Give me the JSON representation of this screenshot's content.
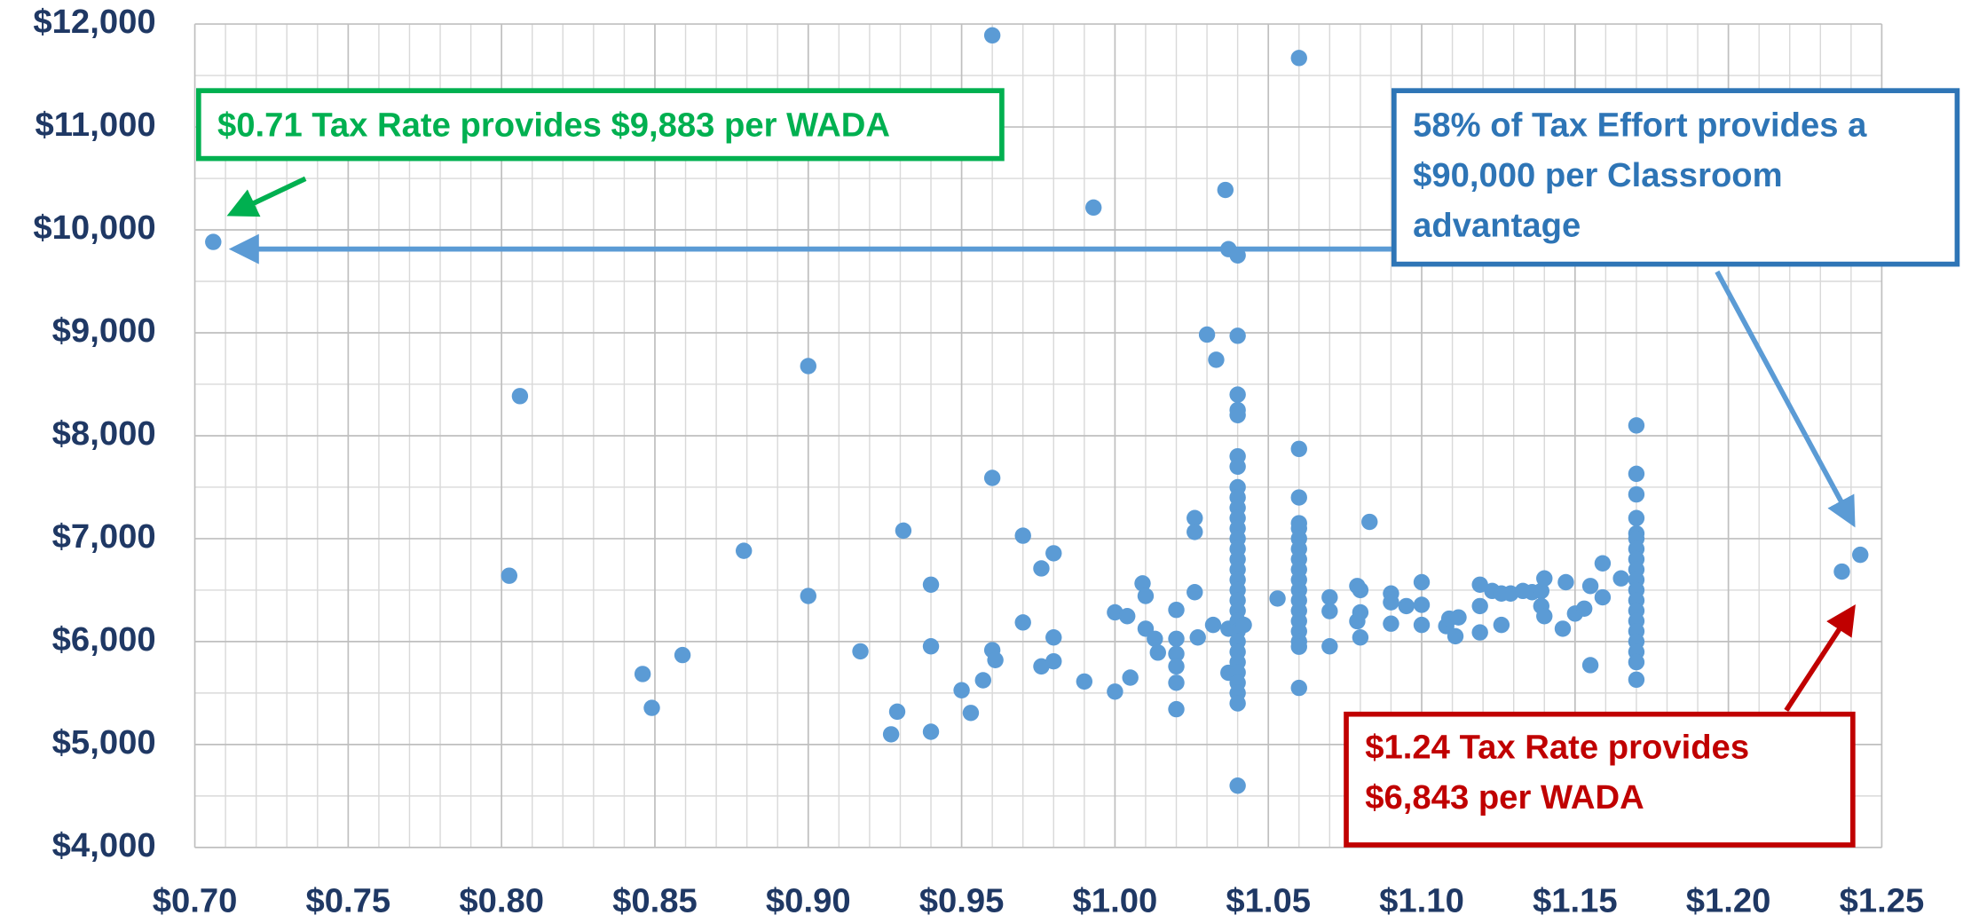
{
  "chart_data": {
    "type": "scatter",
    "x": [
      0.706,
      0.8025,
      0.806,
      0.846,
      0.849,
      0.859,
      0.879,
      0.9,
      0.9,
      0.917,
      0.927,
      0.929,
      0.931,
      0.94,
      0.94,
      0.94,
      0.95,
      0.953,
      0.957,
      0.96,
      0.96,
      0.96,
      0.961,
      0.97,
      0.97,
      0.976,
      0.976,
      0.98,
      0.98,
      0.98,
      0.99,
      0.993,
      1.0,
      1.0,
      1.004,
      1.005,
      1.009,
      1.01,
      1.01,
      1.013,
      1.014,
      1.02,
      1.02,
      1.02,
      1.02,
      1.02,
      1.02,
      1.026,
      1.026,
      1.026,
      1.027,
      1.03,
      1.032,
      1.033,
      1.036,
      1.037,
      1.037,
      1.037,
      1.04,
      1.04,
      1.04,
      1.04,
      1.04,
      1.04,
      1.04,
      1.04,
      1.04,
      1.04,
      1.04,
      1.04,
      1.04,
      1.04,
      1.04,
      1.04,
      1.04,
      1.04,
      1.04,
      1.04,
      1.04,
      1.04,
      1.04,
      1.04,
      1.04,
      1.04,
      1.04,
      1.04,
      1.04,
      1.04,
      1.042,
      1.053,
      1.06,
      1.06,
      1.06,
      1.06,
      1.06,
      1.06,
      1.06,
      1.06,
      1.06,
      1.06,
      1.06,
      1.06,
      1.06,
      1.06,
      1.06,
      1.06,
      1.06,
      1.06,
      1.07,
      1.07,
      1.07,
      1.079,
      1.079,
      1.08,
      1.08,
      1.08,
      1.083,
      1.09,
      1.09,
      1.09,
      1.095,
      1.1,
      1.1,
      1.1,
      1.108,
      1.109,
      1.111,
      1.112,
      1.119,
      1.119,
      1.119,
      1.123,
      1.126,
      1.126,
      1.129,
      1.133,
      1.136,
      1.139,
      1.139,
      1.14,
      1.14,
      1.146,
      1.147,
      1.15,
      1.153,
      1.155,
      1.155,
      1.159,
      1.159,
      1.165,
      1.17,
      1.17,
      1.17,
      1.17,
      1.17,
      1.17,
      1.17,
      1.17,
      1.17,
      1.17,
      1.17,
      1.17,
      1.17,
      1.17,
      1.17,
      1.17,
      1.17,
      1.17,
      1.17,
      1.237,
      1.243
    ],
    "values": [
      9883,
      6640,
      8385,
      5685,
      5356,
      5869,
      6882,
      8677,
      6443,
      5905,
      5099,
      5319,
      7078,
      6553,
      5954,
      5124,
      5527,
      5307,
      5624,
      11890,
      7590,
      5917,
      5820,
      7029,
      6186,
      6711,
      5759,
      6858,
      6040,
      5808,
      5612,
      10217,
      6284,
      5514,
      6247,
      5650,
      6565,
      6443,
      6125,
      6027,
      5893,
      6308,
      6027,
      5881,
      5759,
      5600,
      5343,
      7200,
      7065,
      6480,
      6040,
      8983,
      6162,
      8738,
      10388,
      9813,
      6125,
      5697,
      9752,
      8971,
      8400,
      8250,
      8200,
      7800,
      7700,
      7500,
      7400,
      7300,
      7200,
      7100,
      7000,
      6900,
      6800,
      6700,
      6600,
      6500,
      6400,
      6300,
      6200,
      6100,
      6000,
      5900,
      5800,
      5700,
      5600,
      5500,
      5400,
      4600,
      6162,
      6418,
      11670,
      7872,
      7400,
      7150,
      7100,
      7000,
      6900,
      6800,
      6700,
      6600,
      6500,
      6400,
      6300,
      6200,
      6100,
      6000,
      5950,
      5550,
      6430,
      6296,
      5954,
      6540,
      6198,
      6500,
      6284,
      6040,
      7163,
      6467,
      6382,
      6174,
      6345,
      6577,
      6357,
      6162,
      6150,
      6223,
      6052,
      6235,
      6553,
      6345,
      6089,
      6492,
      6467,
      6162,
      6467,
      6492,
      6480,
      6492,
      6345,
      6614,
      6247,
      6125,
      6577,
      6272,
      6320,
      6540,
      5771,
      6760,
      6430,
      6614,
      8100,
      7630,
      7430,
      7200,
      7050,
      7000,
      6900,
      6800,
      6700,
      6600,
      6500,
      6400,
      6300,
      6200,
      6100,
      6000,
      5900,
      5800,
      5630,
      6680,
      6843
    ],
    "color": "#5b9bd5",
    "xlim": [
      0.7,
      1.25
    ],
    "xticks": [
      {
        "value": 0.7,
        "label": "$0.70"
      },
      {
        "value": 0.75,
        "label": "$0.75"
      },
      {
        "value": 0.8,
        "label": "$0.80"
      },
      {
        "value": 0.85,
        "label": "$0.85"
      },
      {
        "value": 0.9,
        "label": "$0.90"
      },
      {
        "value": 0.95,
        "label": "$0.95"
      },
      {
        "value": 1.0,
        "label": "$1.00"
      },
      {
        "value": 1.05,
        "label": "$1.05"
      },
      {
        "value": 1.1,
        "label": "$1.10"
      },
      {
        "value": 1.15,
        "label": "$1.15"
      },
      {
        "value": 1.2,
        "label": "$1.20"
      },
      {
        "value": 1.25,
        "label": "$1.25"
      }
    ],
    "ylim": [
      4000,
      12000
    ],
    "yticks": [
      {
        "value": 4000,
        "label": "$4,000"
      },
      {
        "value": 5000,
        "label": "$5,000"
      },
      {
        "value": 6000,
        "label": "$6,000"
      },
      {
        "value": 7000,
        "label": "$7,000"
      },
      {
        "value": 8000,
        "label": "$8,000"
      },
      {
        "value": 9000,
        "label": "$9,000"
      },
      {
        "value": 10000,
        "label": "$10,000"
      },
      {
        "value": 11000,
        "label": "$11,000"
      },
      {
        "value": 12000,
        "label": "$12,000"
      }
    ],
    "grid": true,
    "annotations": [
      {
        "lines": [
          "$0.71 Tax Rate provides $9,883 per WADA"
        ]
      },
      {
        "lines": [
          "58% of Tax Effort provides a",
          "$90,000 per Classroom",
          "advantage"
        ]
      },
      {
        "lines": [
          "$1.24 Tax Rate provides",
          "$6,843 per WADA"
        ]
      }
    ]
  }
}
